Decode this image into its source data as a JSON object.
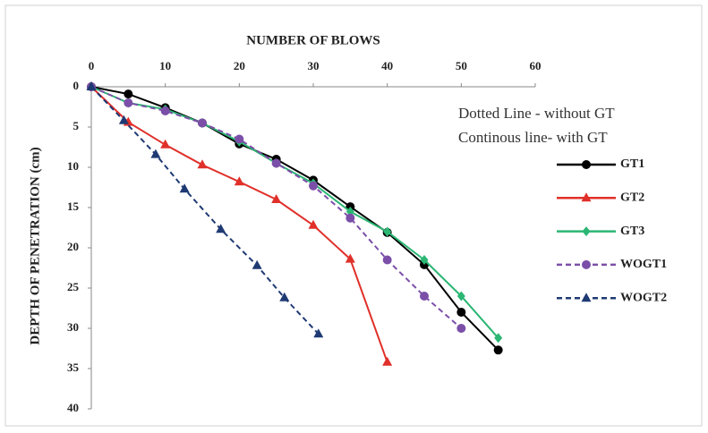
{
  "chart_data": {
    "type": "line",
    "x_label": "NUMBER OF BLOWS",
    "y_label": "DEPTH OF PENETRATION (cm)",
    "annotations": [
      "Dotted Line - without GT",
      "Continous line- with GT"
    ],
    "xlim": [
      0,
      60
    ],
    "xticks": [
      0,
      10,
      20,
      30,
      40,
      50,
      60
    ],
    "ylim": [
      0,
      40
    ],
    "yticks": [
      0,
      5,
      10,
      15,
      20,
      25,
      30,
      35,
      40
    ],
    "y_inverted": true,
    "x_axis_position": "top",
    "legend": "right",
    "series": [
      {
        "name": "GT1",
        "color": "#000000",
        "marker": "circle",
        "dashed": false,
        "x": [
          0,
          5,
          10,
          15,
          20,
          25,
          30,
          35,
          40,
          45,
          50,
          55
        ],
        "values": [
          0,
          0.9,
          2.6,
          4.5,
          7.1,
          9,
          11.6,
          14.9,
          18.1,
          22.1,
          28,
          32.7
        ]
      },
      {
        "name": "GT2",
        "color": "#e0302a",
        "marker": "triangle",
        "dashed": false,
        "x": [
          0,
          5,
          10,
          15,
          20,
          25,
          30,
          35,
          40
        ],
        "values": [
          0,
          4.4,
          7.2,
          9.7,
          11.8,
          14,
          17.2,
          21.4,
          34.2
        ]
      },
      {
        "name": "GT3",
        "color": "#2bb673",
        "marker": "diamond",
        "dashed": false,
        "x": [
          0,
          5,
          10,
          15,
          20,
          25,
          30,
          35,
          40,
          45,
          50,
          55
        ],
        "values": [
          0,
          2,
          2.8,
          4.5,
          6.8,
          9.5,
          12,
          15.5,
          18,
          21.5,
          26,
          31.2
        ]
      },
      {
        "name": "WOGT1",
        "color": "#7b4fa8",
        "marker": "circle",
        "dashed": true,
        "x": [
          0,
          5,
          10,
          15,
          20,
          25,
          30,
          35,
          40,
          45,
          50
        ],
        "values": [
          0,
          2,
          3,
          4.5,
          6.5,
          9.5,
          12.3,
          16.3,
          21.5,
          26,
          30
        ]
      },
      {
        "name": "WOGT2",
        "color": "#1f3a73",
        "marker": "triangle",
        "dashed": true,
        "x": [
          0,
          4.4,
          8.7,
          12.6,
          17.5,
          22.4,
          26.1,
          30.7
        ],
        "values": [
          0,
          4.2,
          8.4,
          12.7,
          17.7,
          22.2,
          26.2,
          30.7
        ]
      }
    ]
  }
}
